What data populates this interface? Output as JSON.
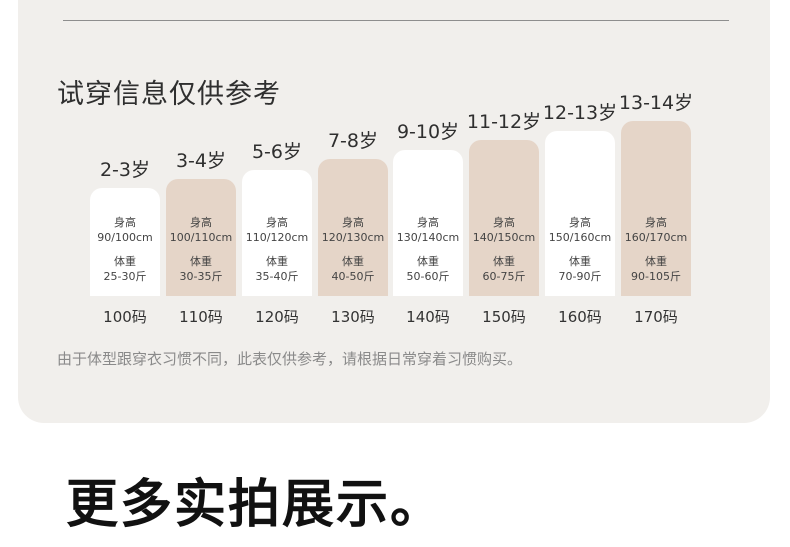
{
  "section_title": "试穿信息仅供参考",
  "sizes": [
    {
      "age": "2-3岁",
      "height_label": "身高",
      "height": "90/100cm",
      "weight_label": "体重",
      "weight": "25-30斤",
      "size": "100码",
      "highlight": false
    },
    {
      "age": "3-4岁",
      "height_label": "身高",
      "height": "100/110cm",
      "weight_label": "体重",
      "weight": "30-35斤",
      "size": "110码",
      "highlight": true
    },
    {
      "age": "5-6岁",
      "height_label": "身高",
      "height": "110/120cm",
      "weight_label": "体重",
      "weight": "35-40斤",
      "size": "120码",
      "highlight": false
    },
    {
      "age": "7-8岁",
      "height_label": "身高",
      "height": "120/130cm",
      "weight_label": "体重",
      "weight": "40-50斤",
      "size": "130码",
      "highlight": true
    },
    {
      "age": "9-10岁",
      "height_label": "身高",
      "height": "130/140cm",
      "weight_label": "体重",
      "weight": "50-60斤",
      "size": "140码",
      "highlight": false
    },
    {
      "age": "11-12岁",
      "height_label": "身高",
      "height": "140/150cm",
      "weight_label": "体重",
      "weight": "60-75斤",
      "size": "150码",
      "highlight": true
    },
    {
      "age": "12-13岁",
      "height_label": "身高",
      "height": "150/160cm",
      "weight_label": "体重",
      "weight": "70-90斤",
      "size": "160码",
      "highlight": false
    },
    {
      "age": "13-14岁",
      "height_label": "身高",
      "height": "160/170cm",
      "weight_label": "体重",
      "weight": "90-105斤",
      "size": "170码",
      "highlight": true
    }
  ],
  "note": "由于体型跟穿衣习惯不同，此表仅供参考，请根据日常穿着习惯购买。",
  "gallery_heading": "更多实拍展示。",
  "colors": {
    "card_background": "#f1efec",
    "bar_white": "#ffffff",
    "bar_beige": "#e5d5c8",
    "note_text": "#8a8a8a"
  }
}
